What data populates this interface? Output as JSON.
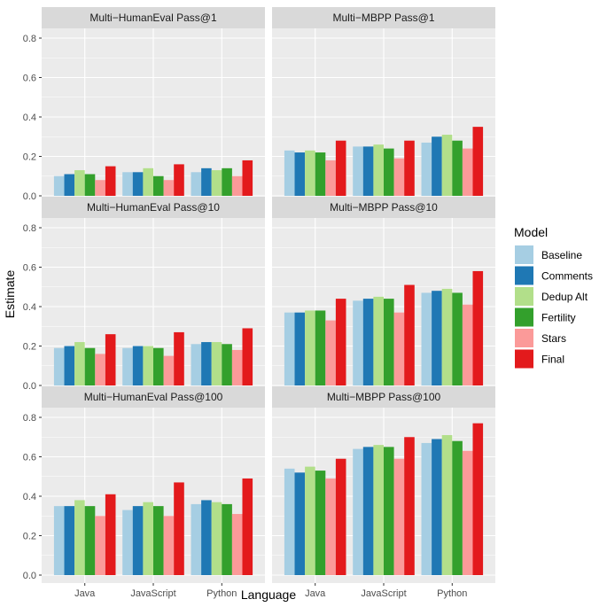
{
  "chart_data": {
    "type": "bar",
    "xlabel": "Language",
    "ylabel": "Estimate",
    "ylim": [
      0,
      0.8
    ],
    "y_ticks": [
      "0.0",
      "0.2",
      "0.4",
      "0.6",
      "0.8"
    ],
    "y_tick_values": [
      0,
      0.2,
      0.4,
      0.6,
      0.8
    ],
    "categories": [
      "Java",
      "JavaScript",
      "Python"
    ],
    "legend": {
      "title": "Model",
      "placement": "right",
      "entries": [
        {
          "name": "Baseline",
          "color": "#a6cee3"
        },
        {
          "name": "Comments",
          "color": "#1f78b4"
        },
        {
          "name": "Dedup Alt",
          "color": "#b2df8a"
        },
        {
          "name": "Fertility",
          "color": "#33a02c"
        },
        {
          "name": "Stars",
          "color": "#fb9a99"
        },
        {
          "name": "Final",
          "color": "#e31a1c"
        }
      ]
    },
    "panels": [
      {
        "title": "Multi−HumanEval Pass@1",
        "series": [
          {
            "name": "Baseline",
            "values": [
              0.1,
              0.12,
              0.12
            ]
          },
          {
            "name": "Comments",
            "values": [
              0.11,
              0.12,
              0.14
            ]
          },
          {
            "name": "Dedup Alt",
            "values": [
              0.13,
              0.14,
              0.13
            ]
          },
          {
            "name": "Fertility",
            "values": [
              0.11,
              0.1,
              0.14
            ]
          },
          {
            "name": "Stars",
            "values": [
              0.08,
              0.08,
              0.1
            ]
          },
          {
            "name": "Final",
            "values": [
              0.15,
              0.16,
              0.18
            ]
          }
        ]
      },
      {
        "title": "Multi−MBPP Pass@1",
        "series": [
          {
            "name": "Baseline",
            "values": [
              0.23,
              0.25,
              0.27
            ]
          },
          {
            "name": "Comments",
            "values": [
              0.22,
              0.25,
              0.3
            ]
          },
          {
            "name": "Dedup Alt",
            "values": [
              0.23,
              0.26,
              0.31
            ]
          },
          {
            "name": "Fertility",
            "values": [
              0.22,
              0.24,
              0.28
            ]
          },
          {
            "name": "Stars",
            "values": [
              0.18,
              0.19,
              0.24
            ]
          },
          {
            "name": "Final",
            "values": [
              0.28,
              0.28,
              0.35
            ]
          }
        ]
      },
      {
        "title": "Multi−HumanEval Pass@10",
        "series": [
          {
            "name": "Baseline",
            "values": [
              0.19,
              0.19,
              0.21
            ]
          },
          {
            "name": "Comments",
            "values": [
              0.2,
              0.2,
              0.22
            ]
          },
          {
            "name": "Dedup Alt",
            "values": [
              0.22,
              0.2,
              0.22
            ]
          },
          {
            "name": "Fertility",
            "values": [
              0.19,
              0.19,
              0.21
            ]
          },
          {
            "name": "Stars",
            "values": [
              0.16,
              0.15,
              0.18
            ]
          },
          {
            "name": "Final",
            "values": [
              0.26,
              0.27,
              0.29
            ]
          }
        ]
      },
      {
        "title": "Multi−MBPP Pass@10",
        "series": [
          {
            "name": "Baseline",
            "values": [
              0.37,
              0.43,
              0.47
            ]
          },
          {
            "name": "Comments",
            "values": [
              0.37,
              0.44,
              0.48
            ]
          },
          {
            "name": "Dedup Alt",
            "values": [
              0.38,
              0.45,
              0.49
            ]
          },
          {
            "name": "Fertility",
            "values": [
              0.38,
              0.44,
              0.47
            ]
          },
          {
            "name": "Stars",
            "values": [
              0.33,
              0.37,
              0.41
            ]
          },
          {
            "name": "Final",
            "values": [
              0.44,
              0.51,
              0.58
            ]
          }
        ]
      },
      {
        "title": "Multi−HumanEval Pass@100",
        "series": [
          {
            "name": "Baseline",
            "values": [
              0.35,
              0.33,
              0.36
            ]
          },
          {
            "name": "Comments",
            "values": [
              0.35,
              0.35,
              0.38
            ]
          },
          {
            "name": "Dedup Alt",
            "values": [
              0.38,
              0.37,
              0.37
            ]
          },
          {
            "name": "Fertility",
            "values": [
              0.35,
              0.35,
              0.36
            ]
          },
          {
            "name": "Stars",
            "values": [
              0.3,
              0.3,
              0.31
            ]
          },
          {
            "name": "Final",
            "values": [
              0.41,
              0.47,
              0.49
            ]
          }
        ]
      },
      {
        "title": "Multi−MBPP Pass@100",
        "series": [
          {
            "name": "Baseline",
            "values": [
              0.54,
              0.64,
              0.67
            ]
          },
          {
            "name": "Comments",
            "values": [
              0.52,
              0.65,
              0.69
            ]
          },
          {
            "name": "Dedup Alt",
            "values": [
              0.55,
              0.66,
              0.71
            ]
          },
          {
            "name": "Fertility",
            "values": [
              0.53,
              0.65,
              0.68
            ]
          },
          {
            "name": "Stars",
            "values": [
              0.49,
              0.59,
              0.63
            ]
          },
          {
            "name": "Final",
            "values": [
              0.59,
              0.7,
              0.77
            ]
          }
        ]
      }
    ]
  }
}
